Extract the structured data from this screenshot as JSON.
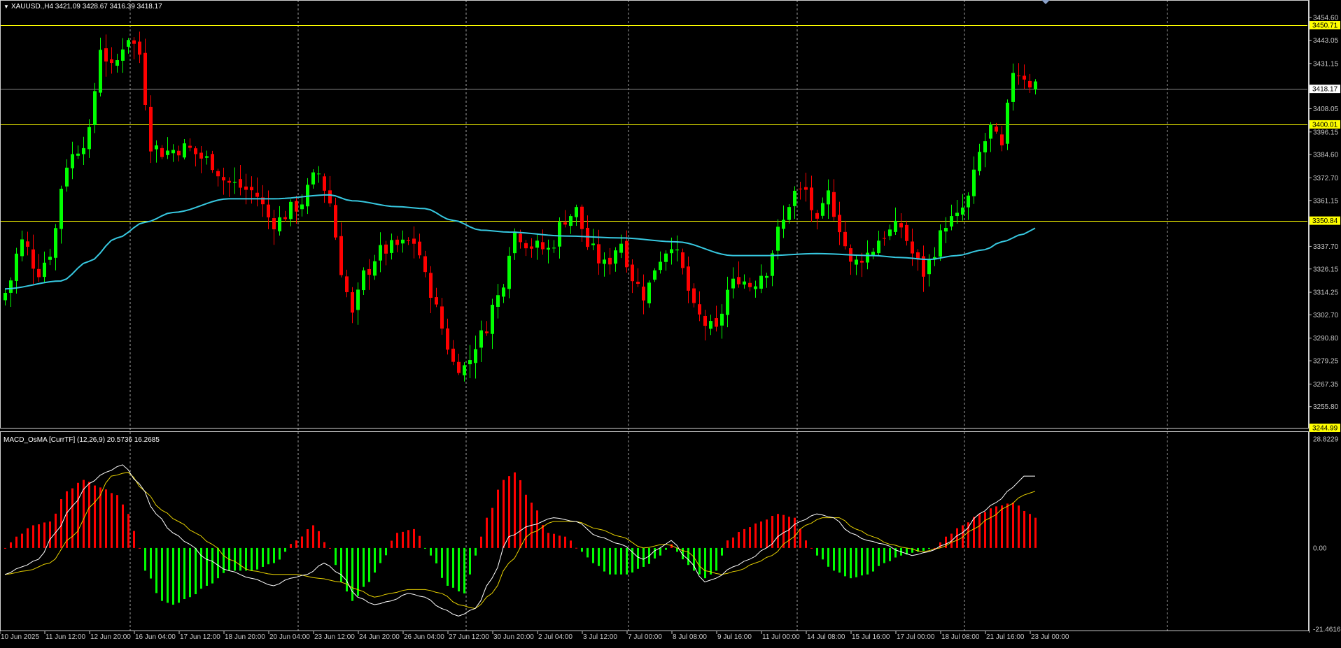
{
  "window": {
    "symbol_header": "XAUUSD.,H4  3421.09 3428.67 3416.39 3418.17",
    "indicator_header": "MACD_OsMA [CurrTF] (12,26,9) 20.5736 16.2685"
  },
  "colors": {
    "background": "#000000",
    "bull_candle": "#00ff00",
    "bear_candle": "#ff0000",
    "moving_average": "#37c8e0",
    "level_line": "#ffff00",
    "current_price_line": "#8a8a8a",
    "macd_line": "#ffffff",
    "signal_line": "#e6d000",
    "hist_positive": "#ff0000",
    "hist_negative": "#00ff00",
    "grid": "#c8c8c8",
    "axis_text": "#c8c8c8"
  },
  "price_axis": {
    "labels": [
      "3454.60",
      "3443.05",
      "3431.15",
      "3408.05",
      "3396.15",
      "3384.60",
      "3372.70",
      "3361.15",
      "3337.70",
      "3326.15",
      "3314.25",
      "3302.70",
      "3290.80",
      "3279.25",
      "3267.35",
      "3255.80"
    ],
    "values": [
      3454.6,
      3443.05,
      3431.15,
      3408.05,
      3396.15,
      3384.6,
      3372.7,
      3361.15,
      3337.7,
      3326.15,
      3314.25,
      3302.7,
      3290.8,
      3279.25,
      3267.35,
      3255.8
    ],
    "min": 3244.99,
    "max": 3457.5
  },
  "price_levels": [
    {
      "label": "3450.71",
      "value": 3450.71
    },
    {
      "label": "3400.01",
      "value": 3400.01
    },
    {
      "label": "3350.84",
      "value": 3350.84
    },
    {
      "label": "3244.99",
      "value": 3244.99
    }
  ],
  "current_price": {
    "label": "3418.17",
    "value": 3418.17
  },
  "macd_axis": {
    "labels": [
      "28.8229",
      "0.00",
      "-21.4616"
    ],
    "values": [
      28.8229,
      0,
      -21.4616
    ],
    "min": -21.4616,
    "max": 28.8229
  },
  "time_axis": {
    "labels": [
      "10 Jun 2025",
      "11 Jun 12:00",
      "12 Jun 20:00",
      "16 Jun 04:00",
      "17 Jun 12:00",
      "18 Jun 20:00",
      "20 Jun 04:00",
      "23 Jun 12:00",
      "24 Jun 20:00",
      "26 Jun 04:00",
      "27 Jun 12:00",
      "30 Jun 20:00",
      "2 Jul 04:00",
      "3 Jul 12:00",
      "7 Jul 00:00",
      "8 Jul 08:00",
      "9 Jul 16:00",
      "11 Jul 00:00",
      "14 Jul 08:00",
      "15 Jul 16:00",
      "17 Jul 00:00",
      "18 Jul 08:00",
      "21 Jul 16:00",
      "23 Jul 00:00"
    ],
    "bar_index": [
      0,
      8,
      16,
      24,
      32,
      40,
      48,
      56,
      64,
      72,
      80,
      88,
      96,
      104,
      112,
      120,
      128,
      136,
      144,
      152,
      160,
      168,
      176,
      184
    ]
  },
  "chart_data": {
    "type": "candlestick",
    "symbol": "XAUUSD.",
    "timeframe": "H4",
    "anchors_close": [
      [
        0,
        3314
      ],
      [
        3,
        3340
      ],
      [
        6,
        3325
      ],
      [
        8,
        3335
      ],
      [
        11,
        3380
      ],
      [
        13,
        3388
      ],
      [
        15,
        3395
      ],
      [
        17,
        3440
      ],
      [
        19,
        3428
      ],
      [
        22,
        3445
      ],
      [
        24,
        3436
      ],
      [
        26,
        3390
      ],
      [
        28,
        3386
      ],
      [
        32,
        3388
      ],
      [
        36,
        3382
      ],
      [
        40,
        3370
      ],
      [
        44,
        3366
      ],
      [
        48,
        3350
      ],
      [
        52,
        3358
      ],
      [
        56,
        3375
      ],
      [
        58,
        3360
      ],
      [
        60,
        3326
      ],
      [
        62,
        3302
      ],
      [
        64,
        3323
      ],
      [
        67,
        3335
      ],
      [
        70,
        3338
      ],
      [
        73,
        3340
      ],
      [
        76,
        3315
      ],
      [
        78,
        3296
      ],
      [
        80,
        3278
      ],
      [
        82,
        3276
      ],
      [
        85,
        3292
      ],
      [
        88,
        3312
      ],
      [
        91,
        3345
      ],
      [
        94,
        3338
      ],
      [
        97,
        3336
      ],
      [
        100,
        3352
      ],
      [
        102,
        3356
      ],
      [
        104,
        3338
      ],
      [
        107,
        3328
      ],
      [
        110,
        3340
      ],
      [
        112,
        3322
      ],
      [
        114,
        3313
      ],
      [
        117,
        3332
      ],
      [
        119,
        3340
      ],
      [
        121,
        3325
      ],
      [
        123,
        3305
      ],
      [
        125,
        3298
      ],
      [
        127,
        3294
      ],
      [
        129,
        3315
      ],
      [
        131,
        3322
      ],
      [
        133,
        3318
      ],
      [
        136,
        3326
      ],
      [
        138,
        3345
      ],
      [
        141,
        3365
      ],
      [
        143,
        3366
      ],
      [
        145,
        3348
      ],
      [
        147,
        3364
      ],
      [
        149,
        3348
      ],
      [
        151,
        3328
      ],
      [
        154,
        3334
      ],
      [
        157,
        3344
      ],
      [
        160,
        3348
      ],
      [
        162,
        3334
      ],
      [
        164,
        3324
      ],
      [
        166,
        3336
      ],
      [
        168,
        3350
      ],
      [
        170,
        3352
      ],
      [
        172,
        3362
      ],
      [
        174,
        3385
      ],
      [
        176,
        3398
      ],
      [
        178,
        3387
      ],
      [
        180,
        3428
      ],
      [
        182,
        3425
      ],
      [
        183,
        3421
      ]
    ],
    "ma_close": [
      [
        0,
        3316
      ],
      [
        10,
        3320
      ],
      [
        15,
        3330
      ],
      [
        20,
        3342
      ],
      [
        25,
        3350
      ],
      [
        30,
        3355
      ],
      [
        40,
        3362
      ],
      [
        48,
        3362
      ],
      [
        58,
        3364
      ],
      [
        62,
        3361
      ],
      [
        70,
        3358
      ],
      [
        75,
        3357
      ],
      [
        80,
        3351
      ],
      [
        85,
        3346
      ],
      [
        90,
        3345
      ],
      [
        100,
        3343
      ],
      [
        110,
        3342
      ],
      [
        120,
        3340
      ],
      [
        130,
        3333
      ],
      [
        136,
        3333
      ],
      [
        145,
        3334
      ],
      [
        155,
        3333
      ],
      [
        160,
        3332
      ],
      [
        165,
        3331
      ],
      [
        170,
        3333
      ],
      [
        175,
        3336
      ],
      [
        178,
        3340
      ],
      [
        182,
        3344
      ],
      [
        184,
        3347
      ]
    ],
    "macd_hist": [
      [
        0,
        0
      ],
      [
        2,
        3
      ],
      [
        5,
        6
      ],
      [
        8,
        7
      ],
      [
        11,
        15
      ],
      [
        14,
        18
      ],
      [
        17,
        16
      ],
      [
        20,
        14
      ],
      [
        22,
        9
      ],
      [
        24,
        0
      ],
      [
        25,
        -6
      ],
      [
        28,
        -14
      ],
      [
        30,
        -15
      ],
      [
        33,
        -13
      ],
      [
        36,
        -10
      ],
      [
        40,
        -6
      ],
      [
        44,
        -6
      ],
      [
        48,
        -4
      ],
      [
        52,
        2
      ],
      [
        55,
        6
      ],
      [
        58,
        0
      ],
      [
        60,
        -9
      ],
      [
        62,
        -14
      ],
      [
        65,
        -9
      ],
      [
        67,
        -4
      ],
      [
        70,
        4
      ],
      [
        73,
        5
      ],
      [
        76,
        -2
      ],
      [
        79,
        -10
      ],
      [
        82,
        -12
      ],
      [
        84,
        -2
      ],
      [
        86,
        8
      ],
      [
        89,
        18
      ],
      [
        91,
        20
      ],
      [
        94,
        12
      ],
      [
        97,
        4
      ],
      [
        100,
        3
      ],
      [
        103,
        -1
      ],
      [
        105,
        -4
      ],
      [
        108,
        -7
      ],
      [
        111,
        -7
      ],
      [
        114,
        -5
      ],
      [
        117,
        -2
      ],
      [
        119,
        1
      ],
      [
        121,
        -3
      ],
      [
        123,
        -6
      ],
      [
        125,
        -8
      ],
      [
        127,
        -6
      ],
      [
        129,
        2
      ],
      [
        132,
        5
      ],
      [
        135,
        7
      ],
      [
        138,
        9
      ],
      [
        141,
        8
      ],
      [
        143,
        2
      ],
      [
        145,
        -2
      ],
      [
        148,
        -6
      ],
      [
        151,
        -8
      ],
      [
        154,
        -7
      ],
      [
        157,
        -4
      ],
      [
        160,
        -2
      ],
      [
        163,
        -1
      ],
      [
        166,
        0
      ],
      [
        168,
        3
      ],
      [
        171,
        6
      ],
      [
        174,
        9
      ],
      [
        177,
        11
      ],
      [
        180,
        12
      ],
      [
        183,
        9
      ],
      [
        184,
        8
      ]
    ],
    "macd_line": [
      [
        0,
        -7
      ],
      [
        3,
        -5
      ],
      [
        6,
        -3
      ],
      [
        9,
        4
      ],
      [
        12,
        11
      ],
      [
        15,
        17
      ],
      [
        18,
        20
      ],
      [
        21,
        22
      ],
      [
        24,
        17
      ],
      [
        27,
        9
      ],
      [
        30,
        4
      ],
      [
        33,
        1
      ],
      [
        36,
        -3
      ],
      [
        40,
        -6
      ],
      [
        44,
        -8
      ],
      [
        48,
        -10
      ],
      [
        51,
        -8
      ],
      [
        54,
        -7
      ],
      [
        57,
        -4
      ],
      [
        60,
        -7
      ],
      [
        63,
        -13
      ],
      [
        66,
        -15
      ],
      [
        69,
        -14
      ],
      [
        72,
        -12
      ],
      [
        75,
        -13
      ],
      [
        78,
        -16
      ],
      [
        81,
        -18
      ],
      [
        84,
        -16
      ],
      [
        87,
        -8
      ],
      [
        90,
        3
      ],
      [
        94,
        6
      ],
      [
        98,
        8
      ],
      [
        102,
        7
      ],
      [
        106,
        3
      ],
      [
        110,
        1
      ],
      [
        114,
        -3
      ],
      [
        117,
        0
      ],
      [
        119,
        2
      ],
      [
        122,
        -3
      ],
      [
        125,
        -9
      ],
      [
        127,
        -8
      ],
      [
        130,
        -5
      ],
      [
        133,
        -3
      ],
      [
        136,
        0
      ],
      [
        139,
        4
      ],
      [
        142,
        7
      ],
      [
        145,
        9
      ],
      [
        148,
        8
      ],
      [
        151,
        4
      ],
      [
        154,
        2
      ],
      [
        157,
        1
      ],
      [
        160,
        -1
      ],
      [
        162,
        -2
      ],
      [
        165,
        -1
      ],
      [
        168,
        1
      ],
      [
        171,
        4
      ],
      [
        174,
        9
      ],
      [
        177,
        12
      ],
      [
        180,
        16
      ],
      [
        182,
        19
      ],
      [
        184,
        19
      ]
    ],
    "signal_line": [
      [
        0,
        -7
      ],
      [
        4,
        -6
      ],
      [
        8,
        -4
      ],
      [
        12,
        3
      ],
      [
        16,
        12
      ],
      [
        19,
        19
      ],
      [
        22,
        20
      ],
      [
        25,
        15
      ],
      [
        28,
        10
      ],
      [
        31,
        7
      ],
      [
        34,
        4
      ],
      [
        37,
        1
      ],
      [
        40,
        -3
      ],
      [
        44,
        -6
      ],
      [
        48,
        -7
      ],
      [
        52,
        -7
      ],
      [
        56,
        -8
      ],
      [
        60,
        -9
      ],
      [
        63,
        -11
      ],
      [
        66,
        -13
      ],
      [
        69,
        -12
      ],
      [
        72,
        -11
      ],
      [
        75,
        -11
      ],
      [
        78,
        -12
      ],
      [
        81,
        -15
      ],
      [
        84,
        -16
      ],
      [
        87,
        -12
      ],
      [
        90,
        -4
      ],
      [
        94,
        4
      ],
      [
        98,
        7
      ],
      [
        102,
        7
      ],
      [
        106,
        5
      ],
      [
        110,
        3
      ],
      [
        114,
        0
      ],
      [
        118,
        1
      ],
      [
        122,
        -1
      ],
      [
        125,
        -6
      ],
      [
        128,
        -7
      ],
      [
        131,
        -6
      ],
      [
        134,
        -4
      ],
      [
        137,
        -2
      ],
      [
        140,
        2
      ],
      [
        143,
        6
      ],
      [
        146,
        8
      ],
      [
        149,
        8
      ],
      [
        152,
        5
      ],
      [
        155,
        3
      ],
      [
        158,
        1
      ],
      [
        161,
        0
      ],
      [
        164,
        -1
      ],
      [
        167,
        0
      ],
      [
        170,
        2
      ],
      [
        173,
        5
      ],
      [
        176,
        8
      ],
      [
        179,
        11
      ],
      [
        182,
        14
      ],
      [
        184,
        15
      ]
    ],
    "bars": 185
  }
}
